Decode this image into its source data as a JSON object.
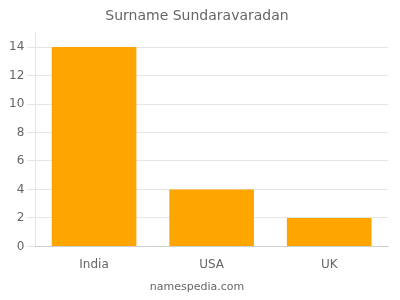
{
  "chart_data": {
    "type": "bar",
    "title": "Surname Sundaravaradan",
    "categories": [
      "India",
      "USA",
      "UK"
    ],
    "values": [
      14,
      4,
      2
    ],
    "color": "#FFA500",
    "ylim": [
      0,
      15
    ],
    "yticks": [
      0,
      2,
      4,
      6,
      8,
      10,
      12,
      14
    ],
    "grid": true,
    "annotations": [
      "namespedia.com"
    ]
  }
}
